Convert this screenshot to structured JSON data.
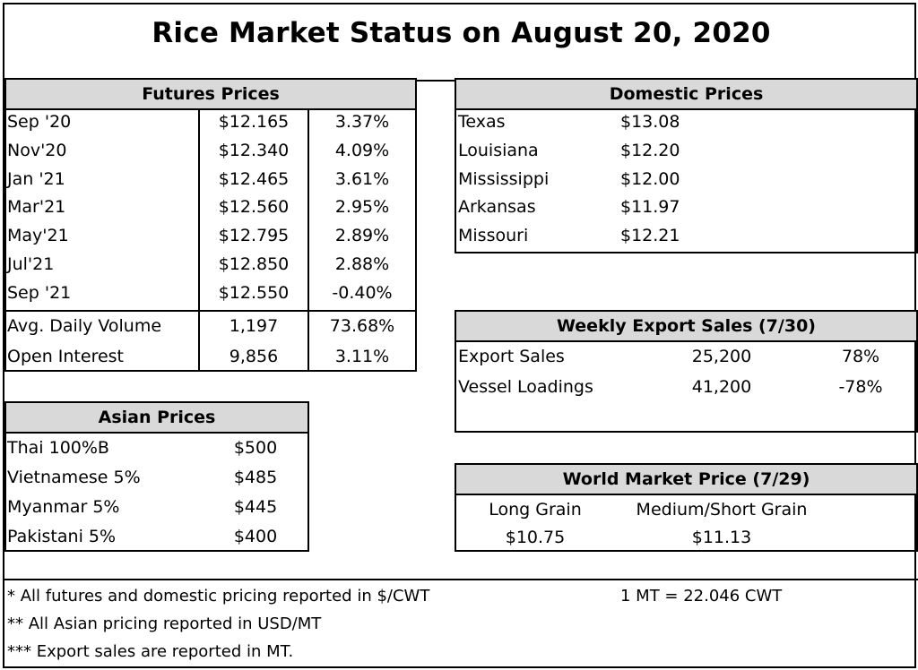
{
  "title": "Rice Market Status on August 20, 2020",
  "futures": {
    "header": "Futures Prices",
    "rows": [
      {
        "month": "Sep '20",
        "price": "$12.165",
        "change": "3.37%"
      },
      {
        "month": "Nov'20",
        "price": "$12.340",
        "change": "4.09%"
      },
      {
        "month": "Jan '21",
        "price": "$12.465",
        "change": "3.61%"
      },
      {
        "month": "Mar'21",
        "price": "$12.560",
        "change": "2.95%"
      },
      {
        "month": "May'21",
        "price": "$12.795",
        "change": "2.89%"
      },
      {
        "month": "Jul'21",
        "price": "$12.850",
        "change": "2.88%"
      },
      {
        "month": "Sep '21",
        "price": "$12.550",
        "change": "-0.40%"
      }
    ],
    "volume": {
      "label": "Avg. Daily Volume",
      "value": "1,197",
      "change": "73.68%"
    },
    "open_interest": {
      "label": "Open Interest",
      "value": "9,856",
      "change": "3.11%"
    }
  },
  "domestic": {
    "header": "Domestic Prices",
    "rows": [
      {
        "state": "Texas",
        "price": "$13.08"
      },
      {
        "state": "Louisiana",
        "price": "$12.20"
      },
      {
        "state": "Mississippi",
        "price": "$12.00"
      },
      {
        "state": "Arkansas",
        "price": "$11.97"
      },
      {
        "state": "Missouri",
        "price": "$12.21"
      }
    ]
  },
  "export": {
    "header": "Weekly Export Sales (7/30)",
    "rows": [
      {
        "label": "Export Sales",
        "value": "25,200",
        "change": "78%"
      },
      {
        "label": "Vessel Loadings",
        "value": "41,200",
        "change": "-78%"
      }
    ]
  },
  "asian": {
    "header": "Asian Prices",
    "rows": [
      {
        "label": "Thai 100%B",
        "price": "$500"
      },
      {
        "label": "Vietnamese 5%",
        "price": "$485"
      },
      {
        "label": "Myanmar 5%",
        "price": "$445"
      },
      {
        "label": "Pakistani 5%",
        "price": "$400"
      }
    ]
  },
  "world": {
    "header": "World Market Price (7/29)",
    "long_label": "Long Grain",
    "medium_label": "Medium/Short Grain",
    "long_price": "$10.75",
    "medium_price": "$11.13"
  },
  "notes": {
    "n1": "* All futures and domestic pricing reported in $/CWT",
    "conversion": "1 MT = 22.046 CWT",
    "n2": "** All Asian pricing reported in USD/MT",
    "n3": "*** Export sales are reported in MT."
  }
}
